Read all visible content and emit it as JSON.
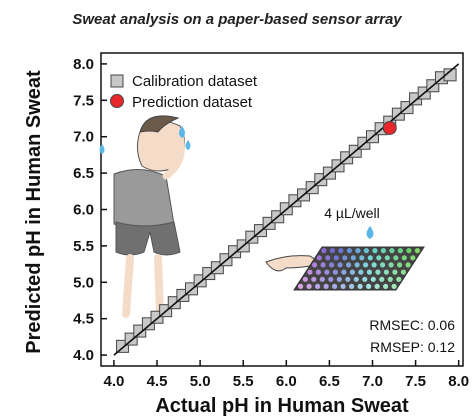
{
  "colors": {
    "calibration_fill": "#c8c8c8",
    "calibration_stroke": "#444444",
    "prediction_fill": "#e8272d",
    "fit_line": "#111111",
    "droplet": "#5bb7e5"
  },
  "icons": [
    "sweating-person-illustration",
    "sensor-array-plate-illustration",
    "droplet-icon"
  ],
  "chart_data": {
    "type": "scatter",
    "title": "Sweat analysis on a paper-based sensor array",
    "xlabel": "Actual pH in Human Sweat",
    "ylabel": "Predicted pH in Human Sweat",
    "xlim": [
      3.85,
      8.05
    ],
    "ylim": [
      3.85,
      8.15
    ],
    "xticks": [
      "4.0",
      "4.5",
      "5.0",
      "5.5",
      "6.0",
      "6.5",
      "7.0",
      "7.5",
      "8.0"
    ],
    "yticks": [
      "4.0",
      "4.5",
      "5.0",
      "5.5",
      "6.0",
      "6.5",
      "7.0",
      "7.5",
      "8.0"
    ],
    "grid": false,
    "legend_position": "top-left",
    "series": [
      {
        "name": "Calibration dataset",
        "marker": "square",
        "x": [
          4.1,
          4.2,
          4.3,
          4.4,
          4.5,
          4.6,
          4.7,
          4.8,
          4.9,
          5.0,
          5.1,
          5.2,
          5.3,
          5.4,
          5.5,
          5.6,
          5.7,
          5.8,
          5.9,
          6.0,
          6.1,
          6.2,
          6.3,
          6.4,
          6.5,
          6.6,
          6.7,
          6.8,
          6.9,
          7.0,
          7.1,
          7.2,
          7.3,
          7.4,
          7.5,
          7.6,
          7.7,
          7.8,
          7.9
        ],
        "y": [
          4.12,
          4.22,
          4.33,
          4.43,
          4.52,
          4.61,
          4.72,
          4.82,
          4.91,
          5.02,
          5.12,
          5.2,
          5.31,
          5.42,
          5.5,
          5.62,
          5.71,
          5.81,
          5.9,
          6.01,
          6.12,
          6.2,
          6.3,
          6.41,
          6.5,
          6.6,
          6.71,
          6.8,
          6.91,
          7.0,
          7.11,
          7.2,
          7.31,
          7.4,
          7.52,
          7.6,
          7.7,
          7.81,
          7.85
        ]
      },
      {
        "name": "Prediction dataset",
        "marker": "circle",
        "x": [
          7.2
        ],
        "y": [
          7.12
        ]
      }
    ],
    "fit_line": {
      "x": [
        4.0,
        8.0
      ],
      "y": [
        4.0,
        8.0
      ]
    },
    "annotations": {
      "volume": "4 µL/well",
      "rmsec": "RMSEC: 0.06",
      "rmsep": "RMSEP: 0.12"
    }
  }
}
